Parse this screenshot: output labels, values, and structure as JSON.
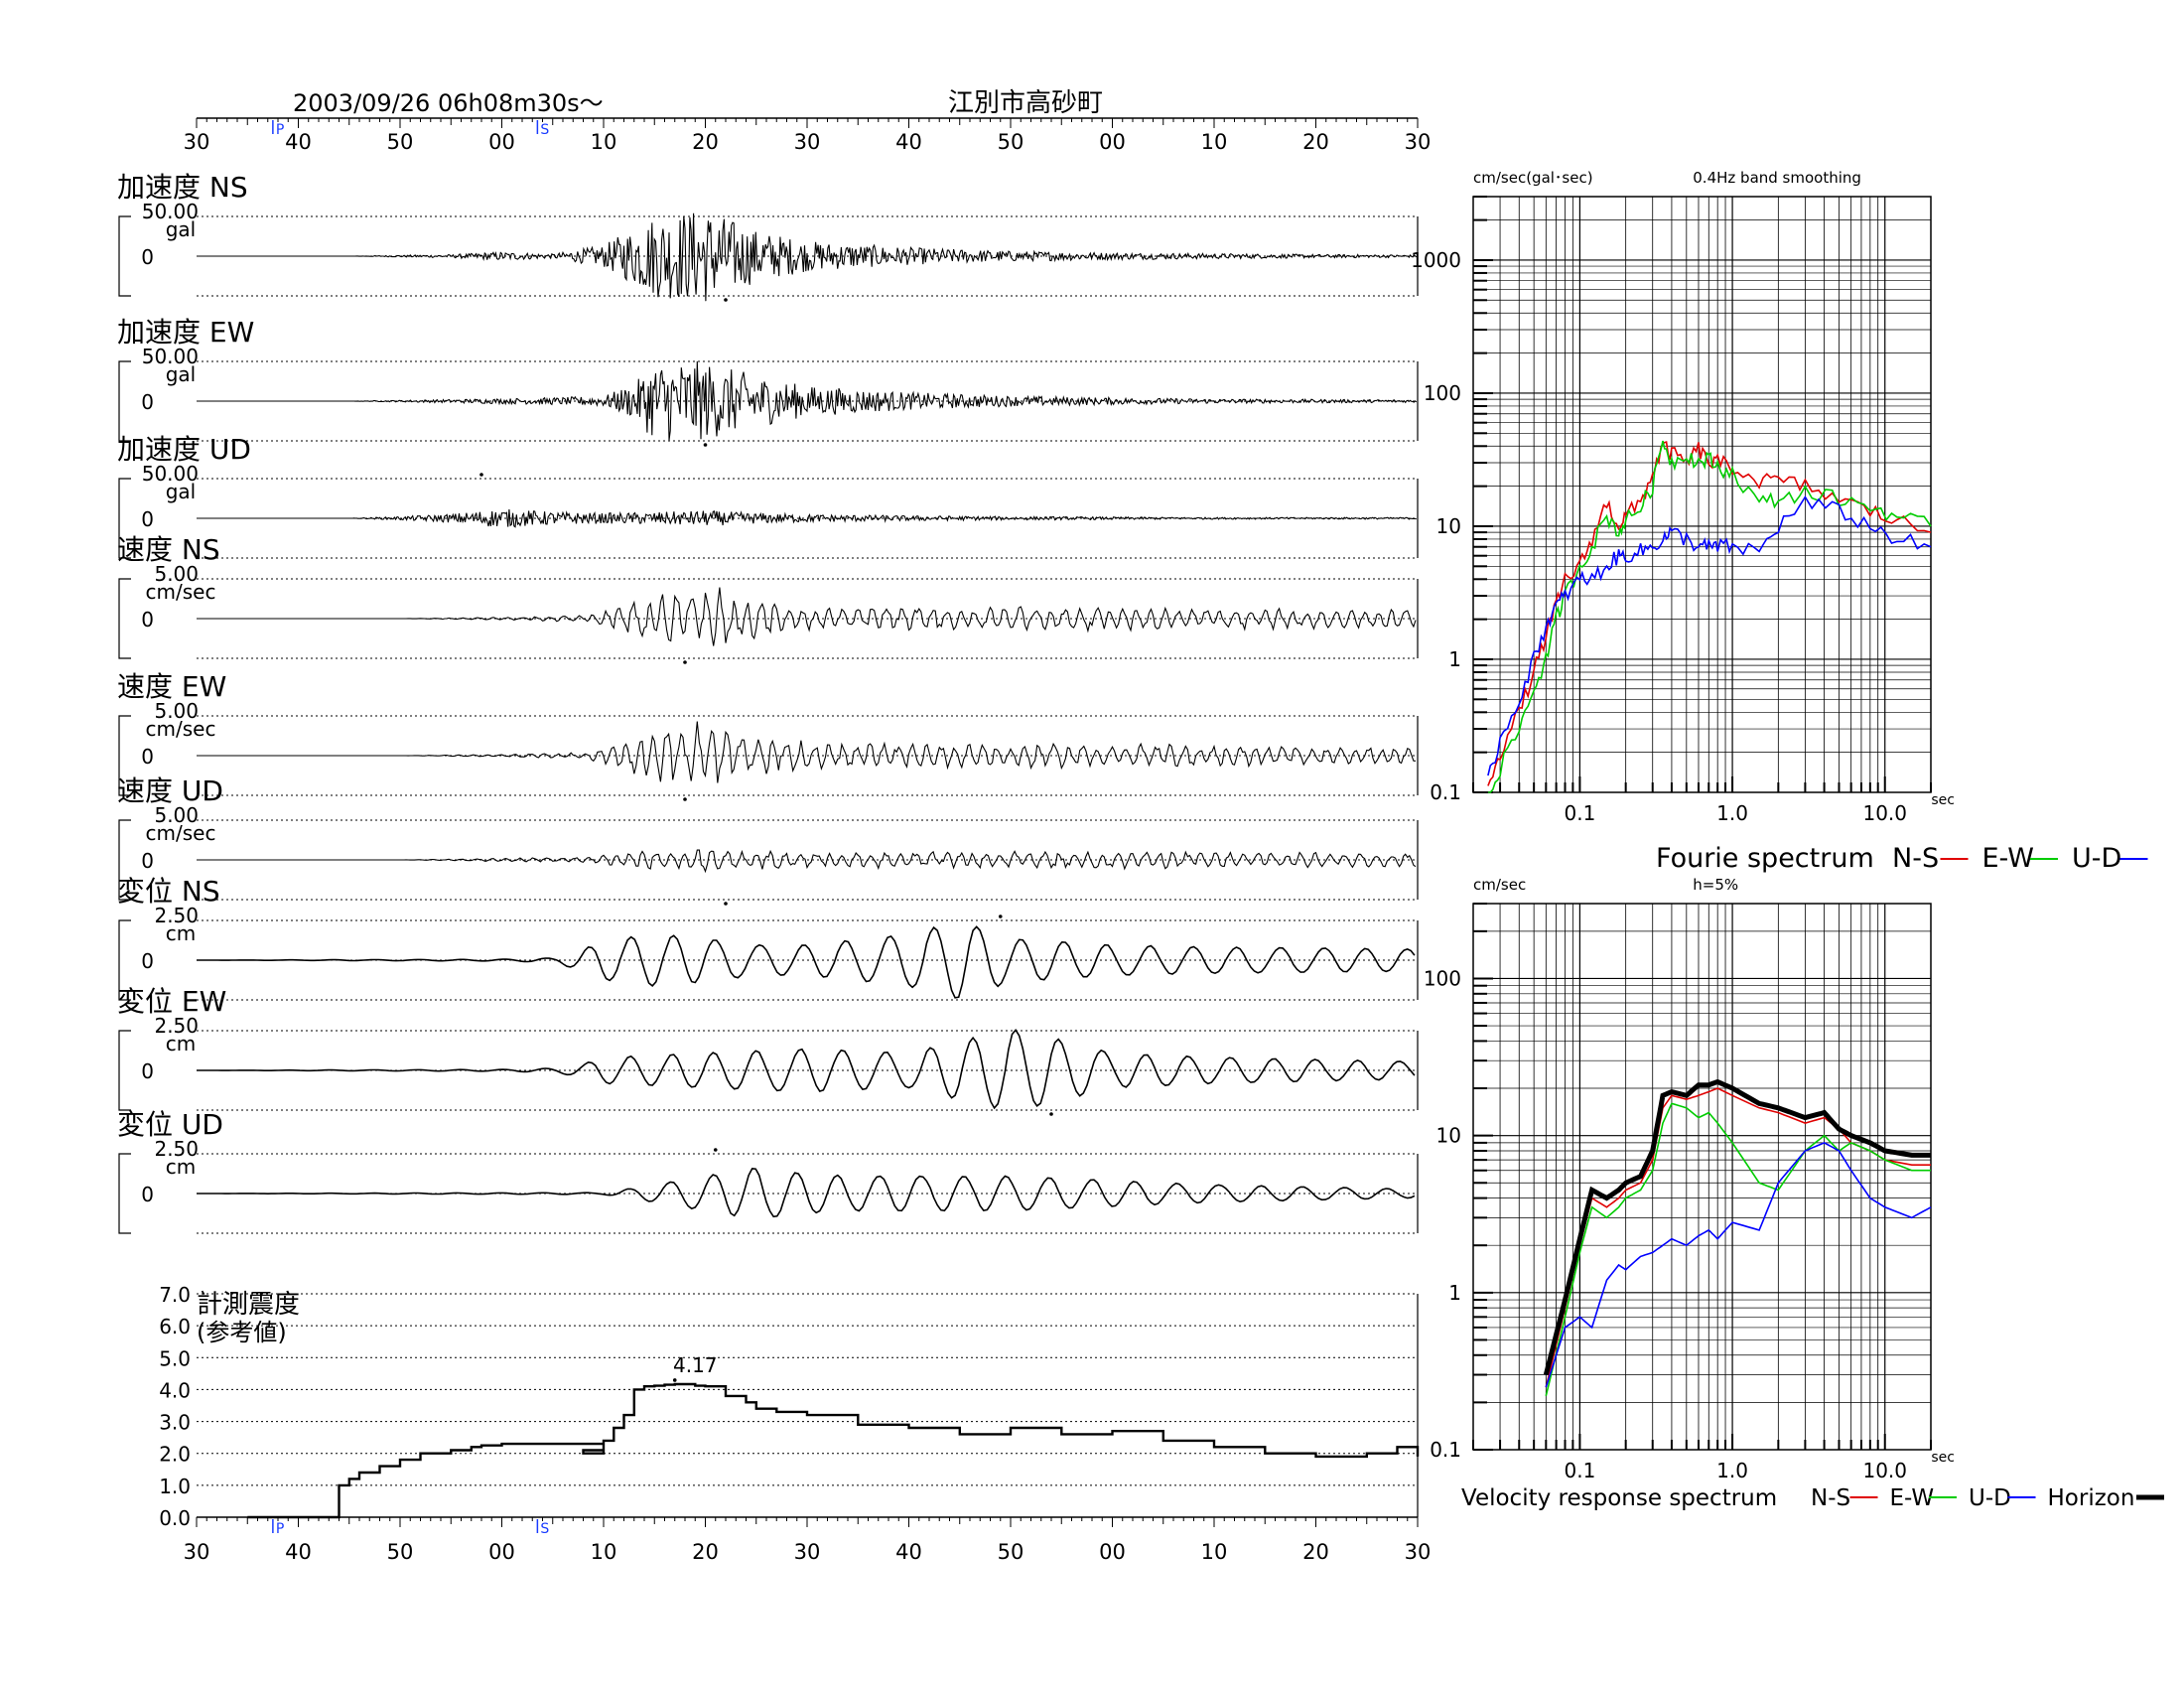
{
  "header": {
    "datetime": "2003/09/26  06h08m30s～",
    "station": "江別市高砂町",
    "p_label": "P",
    "s_label": "S",
    "time_ticks": [
      "30",
      "40",
      "50",
      "00",
      "10",
      "20",
      "30",
      "40",
      "50",
      "00",
      "10",
      "20",
      "30"
    ]
  },
  "colors": {
    "ns": "#e00000",
    "ew": "#00cc00",
    "ud": "#0000ff",
    "horizon": "#000000",
    "marker": "#1a3cff"
  },
  "chart_data": [
    {
      "type": "line",
      "title": "加速度 NS",
      "scale_label": "50.00",
      "unit": "gal",
      "zero_label": "0",
      "x": [
        0,
        15,
        20,
        22,
        23,
        24,
        25,
        26,
        27,
        28,
        30,
        32,
        35,
        40,
        45,
        50,
        55,
        60,
        70,
        80,
        90,
        100,
        110,
        120
      ],
      "envelope": [
        0,
        0,
        2,
        3,
        3,
        3.5,
        3.5,
        5,
        6,
        8,
        10,
        8,
        5,
        25,
        95,
        110,
        60,
        35,
        20,
        12,
        8,
        6,
        4,
        3
      ],
      "peak_x": 52,
      "peak_sign": -1
    },
    {
      "type": "line",
      "title": "加速度 EW",
      "scale_label": "50.00",
      "unit": "gal",
      "zero_label": "0",
      "x": [
        0,
        15,
        20,
        25,
        30,
        35,
        40,
        43,
        45,
        48,
        50,
        55,
        60,
        70,
        80,
        90,
        100,
        110,
        120
      ],
      "envelope": [
        0,
        0,
        2,
        4,
        6,
        8,
        12,
        40,
        90,
        95,
        90,
        60,
        35,
        20,
        12,
        8,
        5,
        4,
        3
      ],
      "peak_x": 50,
      "peak_sign": -1
    },
    {
      "type": "line",
      "title": "加速度 UD",
      "scale_label": "50.00",
      "unit": "gal",
      "zero_label": "0",
      "x": [
        0,
        15,
        20,
        25,
        28,
        30,
        35,
        40,
        45,
        50,
        55,
        60,
        70,
        80,
        90,
        100,
        110,
        120
      ],
      "envelope": [
        0,
        0,
        4,
        10,
        18,
        22,
        15,
        12,
        14,
        18,
        12,
        9,
        6,
        4,
        3,
        2,
        2,
        2
      ],
      "peak_x": 28,
      "peak_sign": 1
    },
    {
      "type": "line",
      "title": "速度 NS",
      "scale_label": "5.00",
      "unit": "cm/sec",
      "zero_label": "0",
      "x": [
        0,
        20,
        30,
        38,
        40,
        45,
        48,
        50,
        52,
        55,
        60,
        70,
        80,
        90,
        100,
        110,
        120
      ],
      "envelope": [
        0,
        0,
        3,
        8,
        20,
        55,
        80,
        85,
        70,
        45,
        30,
        28,
        30,
        28,
        26,
        24,
        22
      ],
      "peak_x": 48,
      "peak_sign": -1
    },
    {
      "type": "line",
      "title": "速度 EW",
      "scale_label": "5.00",
      "unit": "cm/sec",
      "zero_label": "0",
      "x": [
        0,
        20,
        30,
        38,
        40,
        45,
        48,
        50,
        55,
        60,
        70,
        80,
        90,
        100,
        110,
        120
      ],
      "envelope": [
        0,
        0,
        3,
        8,
        20,
        60,
        85,
        80,
        45,
        35,
        30,
        30,
        28,
        26,
        22,
        20
      ],
      "peak_x": 48,
      "peak_sign": -1
    },
    {
      "type": "line",
      "title": "速度 UD",
      "scale_label": "5.00",
      "unit": "cm/sec",
      "zero_label": "0",
      "x": [
        0,
        20,
        30,
        38,
        40,
        45,
        50,
        55,
        60,
        70,
        80,
        90,
        100,
        110,
        120
      ],
      "envelope": [
        0,
        0,
        4,
        8,
        12,
        25,
        30,
        22,
        18,
        20,
        22,
        22,
        20,
        18,
        16
      ],
      "peak_x": 52,
      "peak_sign": -1
    },
    {
      "type": "line",
      "title": "変位 NS",
      "scale_label": "2.50",
      "unit": "cm",
      "zero_label": "0",
      "x": [
        0,
        30,
        35,
        38,
        40,
        45,
        50,
        55,
        60,
        70,
        75,
        80,
        90,
        100,
        110,
        120
      ],
      "envelope": [
        0,
        2,
        5,
        25,
        45,
        60,
        50,
        35,
        35,
        60,
        90,
        50,
        35,
        30,
        28,
        25
      ],
      "peak_x": 79,
      "peak_sign": 1
    },
    {
      "type": "line",
      "title": "変位 EW",
      "scale_label": "2.50",
      "unit": "cm",
      "zero_label": "0",
      "x": [
        0,
        30,
        35,
        38,
        40,
        45,
        50,
        55,
        60,
        70,
        80,
        85,
        90,
        100,
        110,
        120
      ],
      "envelope": [
        0,
        2,
        5,
        15,
        30,
        35,
        40,
        45,
        50,
        40,
        95,
        70,
        40,
        30,
        25,
        20
      ],
      "peak_x": 84,
      "peak_sign": -1
    },
    {
      "type": "line",
      "title": "変位 UD",
      "scale_label": "2.50",
      "unit": "cm",
      "zero_label": "0",
      "x": [
        0,
        40,
        45,
        50,
        55,
        60,
        65,
        70,
        80,
        90,
        100,
        110,
        120
      ],
      "envelope": [
        0,
        2,
        20,
        40,
        60,
        45,
        40,
        40,
        40,
        30,
        20,
        15,
        10
      ],
      "peak_x": 51,
      "peak_sign": 1
    },
    {
      "type": "line",
      "title": "計測震度",
      "subtitle": "(参考値)",
      "peak_label": "4.17",
      "ylim": [
        0,
        7
      ],
      "y_ticks": [
        "0.0",
        "1.0",
        "2.0",
        "3.0",
        "4.0",
        "5.0",
        "6.0",
        "7.0"
      ],
      "x": [
        5,
        13,
        14,
        15,
        16,
        18,
        20,
        22,
        25,
        27,
        28,
        30,
        40,
        38,
        40,
        41,
        42,
        43,
        44,
        45,
        46,
        47,
        48,
        49,
        50,
        52,
        54,
        55,
        57,
        60,
        65,
        70,
        75,
        80,
        85,
        90,
        95,
        100,
        105,
        110,
        115,
        118,
        120
      ],
      "y": [
        0,
        0,
        1.0,
        1.2,
        1.4,
        1.6,
        1.8,
        2.0,
        2.1,
        2.2,
        2.25,
        2.3,
        2.1,
        2.0,
        2.4,
        2.8,
        3.2,
        4.0,
        4.1,
        4.12,
        4.15,
        4.17,
        4.17,
        4.12,
        4.1,
        3.8,
        3.6,
        3.4,
        3.3,
        3.2,
        2.9,
        2.8,
        2.6,
        2.8,
        2.6,
        2.7,
        2.4,
        2.2,
        2.0,
        1.9,
        2.0,
        2.2,
        1.9
      ]
    },
    {
      "type": "line",
      "title": "Fourie spectrum",
      "y_unit": "cm/sec(gal･sec)",
      "note": "0.4Hz band smoothing",
      "x_unit": "sec",
      "xscale": "log",
      "yscale": "log",
      "xlim": [
        0.02,
        20
      ],
      "ylim": [
        0.1,
        3000
      ],
      "x_tick_labels": [
        "0.1",
        "1.0",
        "10.0"
      ],
      "y_tick_labels": [
        "0.1",
        "1",
        "10",
        "100",
        "1000"
      ],
      "legend": [
        "N-S",
        "E-W",
        "U-D"
      ],
      "series": [
        {
          "name": "N-S",
          "x": [
            0.025,
            0.03,
            0.04,
            0.05,
            0.06,
            0.07,
            0.08,
            0.1,
            0.12,
            0.15,
            0.18,
            0.2,
            0.25,
            0.3,
            0.35,
            0.4,
            0.5,
            0.6,
            0.7,
            0.8,
            1,
            1.5,
            2,
            3,
            5,
            8,
            12,
            20
          ],
          "y": [
            0.12,
            0.2,
            0.4,
            0.8,
            1.5,
            2.5,
            4,
            5,
            8,
            15,
            10,
            12,
            15,
            25,
            40,
            35,
            30,
            38,
            30,
            30,
            28,
            22,
            22,
            20,
            16,
            13,
            11,
            9
          ]
        },
        {
          "name": "E-W",
          "x": [
            0.025,
            0.03,
            0.04,
            0.05,
            0.06,
            0.07,
            0.08,
            0.1,
            0.12,
            0.15,
            0.18,
            0.2,
            0.25,
            0.3,
            0.35,
            0.4,
            0.5,
            0.6,
            0.7,
            0.8,
            1,
            1.5,
            2,
            3,
            5,
            8,
            12,
            20
          ],
          "y": [
            0.1,
            0.15,
            0.3,
            0.6,
            1,
            2,
            3,
            5,
            7,
            12,
            9,
            11,
            14,
            20,
            45,
            30,
            35,
            30,
            32,
            28,
            25,
            15,
            16,
            18,
            16,
            14,
            12,
            10
          ]
        },
        {
          "name": "U-D",
          "x": [
            0.025,
            0.03,
            0.04,
            0.05,
            0.06,
            0.07,
            0.08,
            0.1,
            0.12,
            0.15,
            0.18,
            0.2,
            0.25,
            0.3,
            0.35,
            0.4,
            0.5,
            0.6,
            0.7,
            0.8,
            1,
            1.5,
            2,
            3,
            5,
            8,
            12,
            20
          ],
          "y": [
            0.12,
            0.25,
            0.5,
            1,
            1.8,
            2.5,
            3,
            4,
            4,
            5,
            6,
            6,
            6.5,
            7,
            8,
            9,
            8,
            7,
            7,
            7,
            7,
            6.5,
            10,
            15,
            13,
            10,
            8,
            7
          ]
        }
      ]
    },
    {
      "type": "line",
      "title": "Velocity response spectrum",
      "y_unit": "cm/sec",
      "note": "h=5%",
      "x_unit": "sec",
      "xscale": "log",
      "yscale": "log",
      "xlim": [
        0.02,
        20
      ],
      "ylim": [
        0.1,
        300
      ],
      "x_tick_labels": [
        "0.1",
        "1.0",
        "10.0"
      ],
      "y_tick_labels": [
        "0.1",
        "1",
        "10",
        "100"
      ],
      "legend": [
        "N-S",
        "E-W",
        "U-D",
        "Horizon"
      ],
      "series": [
        {
          "name": "N-S",
          "x": [
            0.06,
            0.08,
            0.1,
            0.12,
            0.15,
            0.18,
            0.2,
            0.25,
            0.3,
            0.35,
            0.4,
            0.5,
            0.6,
            0.7,
            0.8,
            1,
            1.5,
            2,
            3,
            4,
            5,
            6,
            8,
            10,
            15,
            20
          ],
          "y": [
            0.25,
            0.8,
            2,
            4,
            3.5,
            4,
            4.5,
            5,
            7,
            15,
            18,
            17,
            18,
            19,
            20,
            18,
            15,
            14,
            12,
            13,
            11,
            9,
            8,
            7,
            6.5,
            6.5
          ]
        },
        {
          "name": "E-W",
          "x": [
            0.06,
            0.08,
            0.1,
            0.12,
            0.15,
            0.18,
            0.2,
            0.25,
            0.3,
            0.35,
            0.4,
            0.5,
            0.6,
            0.7,
            0.8,
            1,
            1.5,
            2,
            3,
            4,
            5,
            6,
            8,
            10,
            15,
            20
          ],
          "y": [
            0.22,
            0.7,
            1.8,
            3.5,
            3,
            3.5,
            4,
            4.5,
            6,
            12,
            16,
            15,
            13,
            14,
            12,
            9,
            5,
            4.5,
            8,
            10,
            8,
            9,
            8,
            7,
            6,
            6
          ]
        },
        {
          "name": "U-D",
          "x": [
            0.06,
            0.08,
            0.1,
            0.12,
            0.15,
            0.18,
            0.2,
            0.25,
            0.3,
            0.35,
            0.4,
            0.5,
            0.6,
            0.7,
            0.8,
            1,
            1.5,
            2,
            3,
            4,
            5,
            6,
            8,
            10,
            15,
            20
          ],
          "y": [
            0.25,
            0.6,
            0.7,
            0.6,
            1.2,
            1.5,
            1.4,
            1.7,
            1.8,
            2,
            2.2,
            2,
            2.3,
            2.5,
            2.2,
            2.8,
            2.5,
            5,
            8,
            9,
            8,
            6,
            4,
            3.5,
            3,
            3.5
          ]
        },
        {
          "name": "Horizon",
          "x": [
            0.06,
            0.08,
            0.1,
            0.12,
            0.15,
            0.18,
            0.2,
            0.25,
            0.3,
            0.35,
            0.4,
            0.5,
            0.6,
            0.7,
            0.8,
            1,
            1.5,
            2,
            3,
            4,
            5,
            6,
            8,
            10,
            15,
            20
          ],
          "y": [
            0.3,
            0.9,
            2.2,
            4.5,
            4,
            4.5,
            5,
            5.5,
            8,
            18,
            19,
            18,
            21,
            21,
            22,
            20,
            16,
            15,
            13,
            14,
            11,
            10,
            9,
            8,
            7.5,
            7.5
          ]
        }
      ]
    }
  ]
}
